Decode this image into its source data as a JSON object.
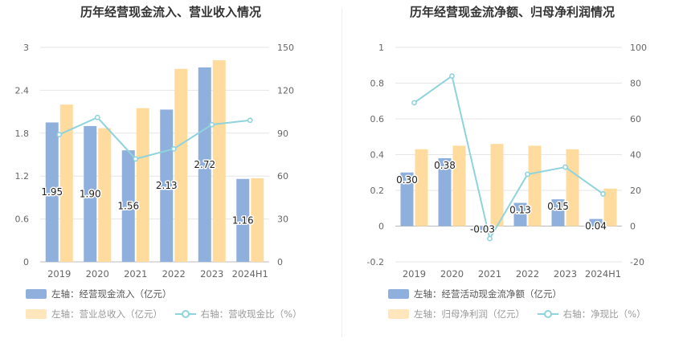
{
  "colors": {
    "bar1": "#8fb0dc",
    "bar2": "#ffdb9e",
    "line": "#8fd3dc"
  },
  "chart_data": [
    {
      "type": "bar",
      "title": "历年经营现金流入、营业收入情况",
      "categories": [
        "2019",
        "2020",
        "2021",
        "2022",
        "2023",
        "2024H1"
      ],
      "left_axis": {
        "min": 0,
        "max": 3,
        "ticks": [
          "0",
          "0.6",
          "1.2",
          "1.8",
          "2.4",
          "3"
        ]
      },
      "right_axis": {
        "min": 0,
        "max": 150,
        "ticks": [
          "0",
          "30",
          "60",
          "90",
          "120",
          "150"
        ]
      },
      "series": [
        {
          "name": "左轴：经营现金流入（亿元）",
          "axis": "left",
          "kind": "bar",
          "values": [
            1.95,
            1.9,
            1.56,
            2.13,
            2.72,
            1.16
          ],
          "labels": [
            "1.95",
            "1.90",
            "1.56",
            "2.13",
            "2.72",
            "1.16"
          ]
        },
        {
          "name": "左轴：营业总收入（亿元）",
          "axis": "left",
          "kind": "bar",
          "values": [
            2.2,
            1.87,
            2.15,
            2.7,
            2.82,
            1.17
          ]
        },
        {
          "name": "右轴：营收现金比（%）",
          "axis": "right",
          "kind": "line",
          "values": [
            89,
            101,
            72,
            79,
            96,
            99
          ]
        }
      ],
      "grid": true,
      "legend_position": "bottom"
    },
    {
      "type": "bar",
      "title": "历年经营现金流净额、归母净利润情况",
      "categories": [
        "2019",
        "2020",
        "2021",
        "2022",
        "2023",
        "2024H1"
      ],
      "left_axis": {
        "min": -0.2,
        "max": 1,
        "ticks": [
          "-0.2",
          "0",
          "0.2",
          "0.4",
          "0.6",
          "0.8",
          "1"
        ]
      },
      "right_axis": {
        "min": -20,
        "max": 100,
        "ticks": [
          "-20",
          "0",
          "20",
          "40",
          "60",
          "80",
          "100"
        ]
      },
      "series": [
        {
          "name": "左轴：经营活动现金流净额（亿元）",
          "axis": "left",
          "kind": "bar",
          "values": [
            0.3,
            0.38,
            -0.03,
            0.13,
            0.15,
            0.04
          ],
          "labels": [
            "0.30",
            "0.38",
            "-0.03",
            "0.13",
            "0.15",
            "0.04"
          ]
        },
        {
          "name": "左轴：归母净利润（亿元）",
          "axis": "left",
          "kind": "bar",
          "values": [
            0.43,
            0.45,
            0.46,
            0.45,
            0.43,
            0.21
          ]
        },
        {
          "name": "右轴：净现比（%）",
          "axis": "right",
          "kind": "line",
          "values": [
            69,
            84,
            -7,
            29,
            33,
            18
          ]
        }
      ],
      "grid": true,
      "legend_position": "bottom"
    }
  ]
}
